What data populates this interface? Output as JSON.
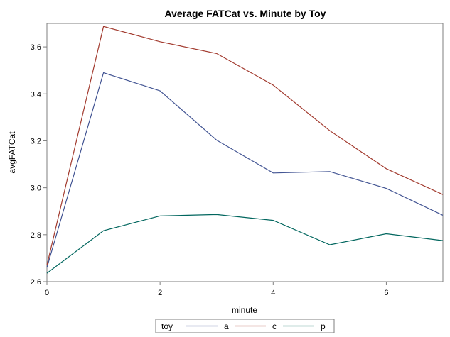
{
  "chart_data": {
    "type": "line",
    "title": "Average FATCat vs. Minute by Toy",
    "xlabel": "minute",
    "ylabel": "avgFATCat",
    "xlim": [
      0,
      7
    ],
    "ylim": [
      2.6,
      3.7
    ],
    "xticks": [
      "0",
      "2",
      "4",
      "6"
    ],
    "yticks": [
      "2.6",
      "2.8",
      "3.0",
      "3.2",
      "3.4",
      "3.6"
    ],
    "x": [
      0,
      1,
      2,
      3,
      4,
      5,
      6,
      7
    ],
    "legend_title": "toy",
    "legend_position": "bottom",
    "grid": false,
    "series": [
      {
        "name": "a",
        "color": "#445694",
        "values": [
          2.66,
          3.49,
          3.413,
          3.203,
          3.063,
          3.069,
          2.997,
          2.883
        ]
      },
      {
        "name": "c",
        "color": "#A23A2E",
        "values": [
          2.67,
          3.687,
          3.622,
          3.572,
          3.437,
          3.243,
          3.081,
          2.971
        ]
      },
      {
        "name": "p",
        "color": "#01665E",
        "values": [
          2.636,
          2.817,
          2.88,
          2.886,
          2.861,
          2.757,
          2.804,
          2.775
        ]
      }
    ]
  }
}
